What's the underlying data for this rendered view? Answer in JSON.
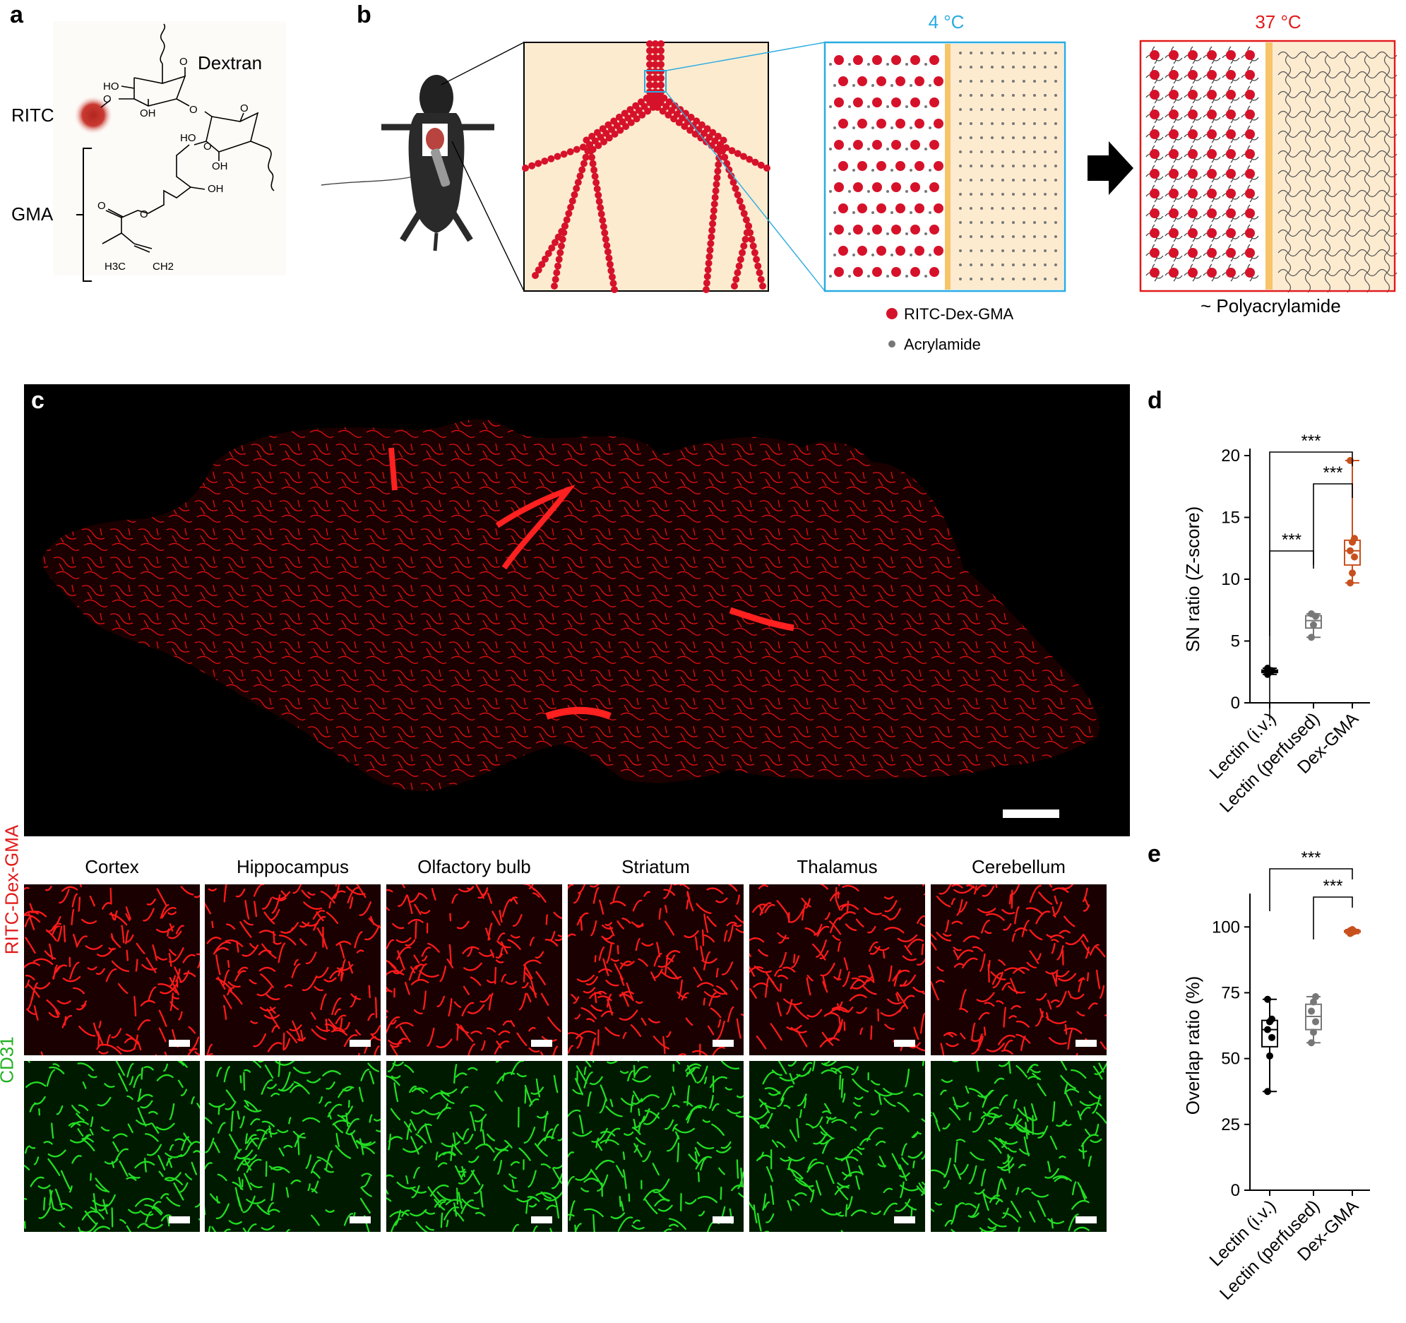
{
  "panels": {
    "a": "a",
    "b": "b",
    "c": "c",
    "d": "d",
    "e": "e"
  },
  "panel_a": {
    "dextran": "Dextran",
    "ritc": "RITC",
    "gma": "GMA",
    "atoms": {
      "ho1": "HO",
      "ho2": "HO",
      "oh1": "OH",
      "oh2": "OH",
      "oh3": "OH",
      "oh4": "OH",
      "o1": "O",
      "o2": "O",
      "o3": "O",
      "o4": "O",
      "o5": "O",
      "o6": "O",
      "o7": "O",
      "h3c": "H3C",
      "ch2": "CH2"
    }
  },
  "panel_b": {
    "temp_cold": "4 °C",
    "temp_warm": "37 °C",
    "legend_ritc": "RITC-Dex-GMA",
    "legend_acryl": "Acrylamide",
    "polyacrylamide": "~ Polyacrylamide"
  },
  "panel_c": {
    "regions": [
      "Cortex",
      "Hippocampus",
      "Olfactory bulb",
      "Striatum",
      "Thalamus",
      "Cerebellum"
    ],
    "row_red": "RITC-Dex-GMA",
    "row_green": "CD31"
  },
  "colors": {
    "ritc_red": "#ff1a1a",
    "cd31_green": "#22dd22",
    "cold_blue": "#29abe2",
    "warm_red": "#e21a1a",
    "beige": "#fdebd0",
    "dex_orange": "#c8501e",
    "gray": "#777777"
  },
  "chart_data": [
    {
      "type": "box",
      "panel": "d",
      "ylabel": "SN ratio (Z-score)",
      "ylim": [
        0,
        20
      ],
      "yticks": [
        "0",
        "5",
        "10",
        "15",
        "20"
      ],
      "categories": [
        "Lectin (i.v.)",
        "Lectin (perfused)",
        "Dex-GMA"
      ],
      "series": [
        {
          "values": [
            2.3,
            2.5,
            2.6,
            2.8
          ]
        },
        {
          "values": [
            5.3,
            6.3,
            7.0,
            7.2
          ]
        },
        {
          "values": [
            9.7,
            10.5,
            11.8,
            12.3,
            13.0,
            13.3,
            19.6
          ]
        }
      ],
      "significance": [
        {
          "pair": [
            0,
            1
          ],
          "label": "***"
        },
        {
          "pair": [
            1,
            2
          ],
          "label": "***"
        },
        {
          "pair": [
            0,
            2
          ],
          "label": "***"
        }
      ]
    },
    {
      "type": "box",
      "panel": "e",
      "ylabel": "Overlap ratio (%)",
      "ylim": [
        0,
        110
      ],
      "yticks": [
        "0",
        "25",
        "50",
        "75",
        "100"
      ],
      "categories": [
        "Lectin (i.v.)",
        "Lectin (perfused)",
        "Dex-GMA"
      ],
      "series": [
        {
          "values": [
            37.5,
            51,
            58,
            61,
            64,
            65,
            72.5
          ]
        },
        {
          "values": [
            56,
            60,
            64,
            68,
            71.5,
            73.5
          ]
        },
        {
          "values": [
            97.5,
            98,
            98.3,
            98.6,
            99
          ]
        }
      ],
      "significance": [
        {
          "pair": [
            1,
            2
          ],
          "label": "***"
        },
        {
          "pair": [
            0,
            2
          ],
          "label": "***"
        }
      ]
    }
  ]
}
